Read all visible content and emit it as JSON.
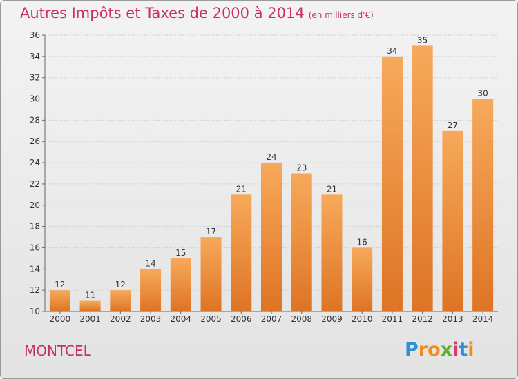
{
  "title": "Autres Impôts et Taxes de 2000 à 2014",
  "unit_note": "(en milliers d'€)",
  "place_name": "MONTCEL",
  "logo": {
    "text": "Proxiti",
    "colors": [
      "#2e8fd6",
      "#f08c1a",
      "#f08c1a",
      "#5bb030",
      "#d63a6e",
      "#2e8fd6",
      "#f08c1a"
    ]
  },
  "colors": {
    "bar_top": "#f7a95a",
    "bar_bottom": "#de7425",
    "title": "#c8306a"
  },
  "chart_data": {
    "type": "bar",
    "title": "Autres Impôts et Taxes de 2000 à 2014",
    "subtitle": "(en milliers d'€)",
    "categories": [
      "2000",
      "2001",
      "2002",
      "2003",
      "2004",
      "2005",
      "2006",
      "2007",
      "2008",
      "2009",
      "2010",
      "2011",
      "2012",
      "2013",
      "2014"
    ],
    "values": [
      12,
      11,
      12,
      14,
      15,
      17,
      21,
      24,
      23,
      21,
      16,
      34,
      35,
      27,
      30
    ],
    "ylim": [
      10,
      36
    ],
    "yticks": [
      10,
      12,
      14,
      16,
      18,
      20,
      22,
      24,
      26,
      28,
      30,
      32,
      34,
      36
    ],
    "grid": true,
    "legend": "none"
  }
}
